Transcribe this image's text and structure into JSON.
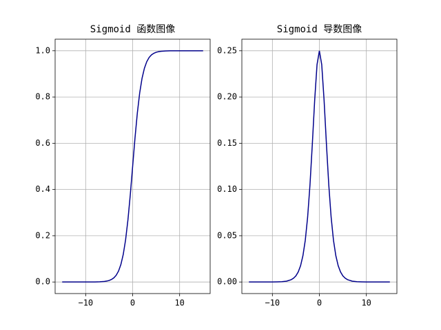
{
  "chart_data": [
    {
      "type": "line",
      "title": "Sigmoid 函数图像",
      "x": [
        -15,
        -14,
        -13,
        -12,
        -11,
        -10,
        -9,
        -8,
        -7,
        -6,
        -5.5,
        -5,
        -4.5,
        -4,
        -3.5,
        -3,
        -2.5,
        -2,
        -1.5,
        -1,
        -0.5,
        0,
        0.5,
        1,
        1.5,
        2,
        2.5,
        3,
        3.5,
        4,
        4.5,
        5,
        5.5,
        6,
        7,
        8,
        9,
        10,
        11,
        12,
        13,
        14,
        15
      ],
      "series": [
        {
          "color": "#00008b",
          "values": [
            0,
            0,
            0,
            0,
            0,
            0,
            0.0001,
            0.0003,
            0.0009,
            0.0025,
            0.0041,
            0.0067,
            0.011,
            0.018,
            0.0293,
            0.0474,
            0.0759,
            0.1192,
            0.1824,
            0.2689,
            0.3775,
            0.5,
            0.6225,
            0.7311,
            0.8176,
            0.8808,
            0.9241,
            0.9526,
            0.9707,
            0.982,
            0.989,
            0.9933,
            0.9959,
            0.9975,
            0.9991,
            0.9997,
            0.9999,
            1,
            1,
            1,
            1,
            1,
            1
          ]
        }
      ],
      "xlim": [
        -16.5,
        16.5
      ],
      "xticks": [
        {
          "value": -10,
          "label": "−10"
        },
        0,
        10
      ],
      "ylim": [
        -0.05,
        1.05
      ],
      "yticks": [
        {
          "value": 0,
          "label": "0.0"
        },
        0.2,
        0.4,
        0.6,
        0.8,
        {
          "value": 1,
          "label": "1.0"
        }
      ],
      "grid": true
    },
    {
      "type": "line",
      "title": "Sigmoid 导数图像",
      "x": [
        -15,
        -14,
        -13,
        -12,
        -11,
        -10,
        -9,
        -8,
        -7,
        -6,
        -5.5,
        -5,
        -4.5,
        -4,
        -3.5,
        -3,
        -2.5,
        -2,
        -1.5,
        -1,
        -0.5,
        0,
        0.5,
        1,
        1.5,
        2,
        2.5,
        3,
        3.5,
        4,
        4.5,
        5,
        5.5,
        6,
        7,
        8,
        9,
        10,
        11,
        12,
        13,
        14,
        15
      ],
      "series": [
        {
          "color": "#00008b",
          "values": [
            0,
            0,
            0,
            0,
            0,
            0,
            0.0001,
            0.0003,
            0.0009,
            0.0025,
            0.0041,
            0.0066,
            0.0109,
            0.0177,
            0.0285,
            0.0452,
            0.0701,
            0.105,
            0.1491,
            0.1966,
            0.235,
            0.25,
            0.235,
            0.1966,
            0.1491,
            0.105,
            0.0701,
            0.0452,
            0.0285,
            0.0177,
            0.0109,
            0.0066,
            0.0041,
            0.0025,
            0.0009,
            0.0003,
            0.0001,
            0,
            0,
            0,
            0,
            0,
            0
          ]
        }
      ],
      "xlim": [
        -16.5,
        16.5
      ],
      "xticks": [
        {
          "value": -10,
          "label": "−10"
        },
        0,
        10
      ],
      "ylim": [
        -0.0125,
        0.2625
      ],
      "yticks": [
        {
          "value": 0,
          "label": "0.00"
        },
        0.05,
        {
          "value": 0.1,
          "label": "0.10"
        },
        0.15,
        {
          "value": 0.2,
          "label": "0.20"
        },
        0.25
      ],
      "grid": true
    }
  ]
}
